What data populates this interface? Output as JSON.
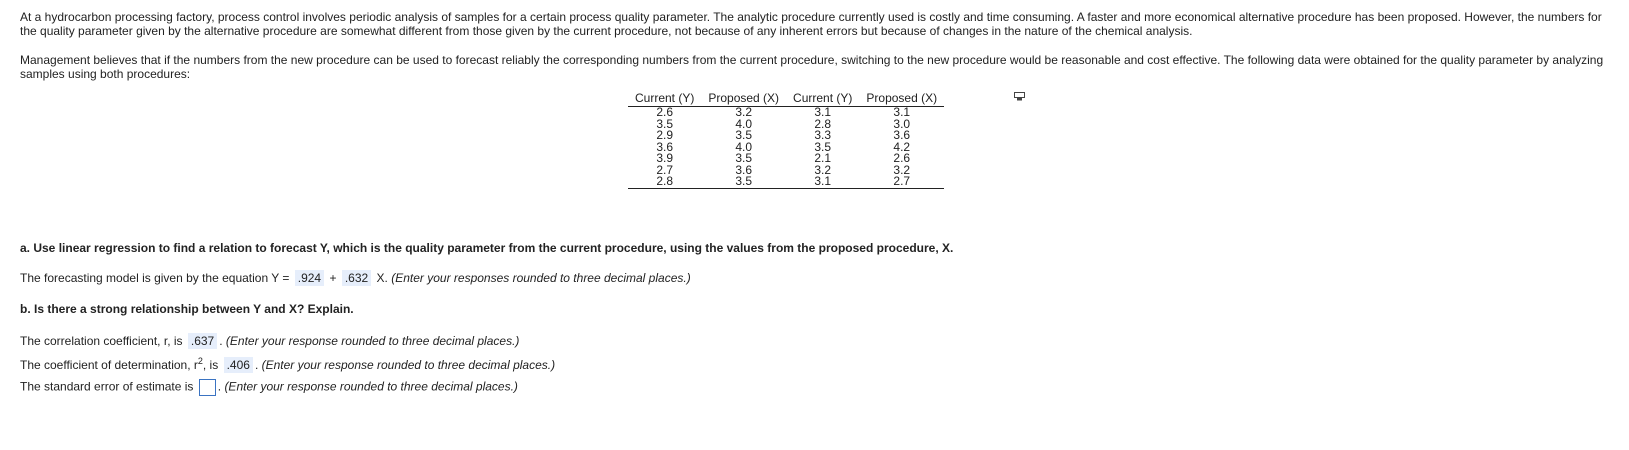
{
  "intro": {
    "paragraph1": "At a hydrocarbon processing factory, process control involves periodic analysis of samples for a certain process quality parameter. The analytic procedure currently used is costly and time consuming. A faster and more economical alternative procedure has been proposed. However, the numbers for the quality parameter given by the alternative procedure are somewhat different from those given by the current procedure, not because of any inherent errors but because of changes in the nature of the chemical analysis.",
    "paragraph2": "Management believes that if the numbers from the new procedure can be used to forecast reliably the corresponding numbers from the current procedure, switching to the new procedure would be reasonable and cost effective. The following data were obtained for the quality parameter by analyzing samples using both procedures:"
  },
  "table": {
    "headers": [
      "Current (Y)",
      "Proposed (X)",
      "Current (Y)",
      "Proposed (X)"
    ],
    "rows": [
      [
        "2.6",
        "3.2",
        "3.1",
        "3.1"
      ],
      [
        "3.5",
        "4.0",
        "2.8",
        "3.0"
      ],
      [
        "2.9",
        "3.5",
        "3.3",
        "3.6"
      ],
      [
        "3.6",
        "4.0",
        "3.5",
        "4.2"
      ],
      [
        "3.9",
        "3.5",
        "2.1",
        "2.6"
      ],
      [
        "2.7",
        "3.6",
        "3.2",
        "3.2"
      ],
      [
        "2.8",
        "3.5",
        "3.1",
        "2.7"
      ]
    ]
  },
  "part_a": {
    "question": "a. Use linear regression to find a relation to forecast Y, which is the quality parameter from the current procedure, using the values from the proposed procedure, X.",
    "eq_prefix": "The forecasting model is given by the equation Y =",
    "intercept": ".924",
    "plus": "+",
    "slope": ".632",
    "eq_suffix": "X.",
    "hint": "(Enter your responses rounded to three decimal places.)"
  },
  "part_b": {
    "question": "b. Is there a strong relationship between Y and X? Explain.",
    "r_prefix": "The correlation coefficient, r, is",
    "r_value": ".637",
    "r_hint": "(Enter your response rounded to three decimal places.)",
    "r2_prefix": "The coefficient of determination, r",
    "r2_sup": "2",
    "r2_is": ", is",
    "r2_value": ".406",
    "r2_hint": "(Enter your response rounded to three decimal places.)",
    "se_prefix": "The standard error of estimate is",
    "se_value": "",
    "se_hint": "(Enter your response rounded to three decimal places.)"
  },
  "icons": {
    "copy": "copy-table-icon"
  }
}
